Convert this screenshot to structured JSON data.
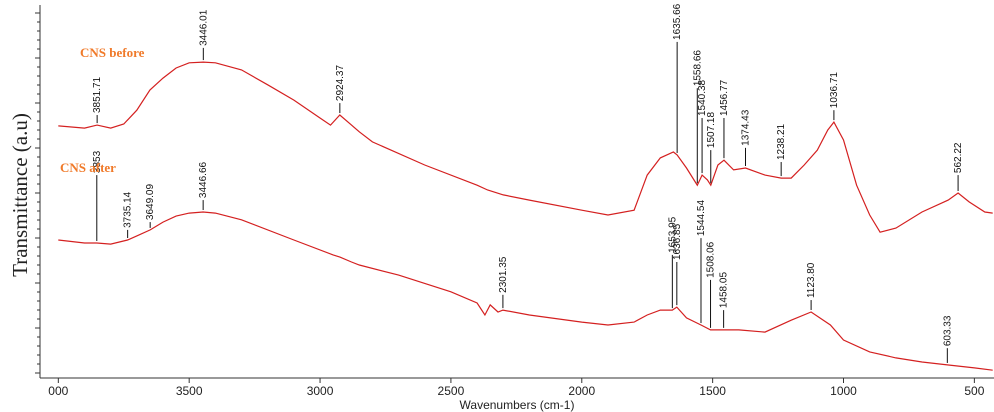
{
  "chart_data": {
    "type": "line",
    "y_label": "Transmittance (a.u)",
    "x_label": "Wavenumbers (cm-1)",
    "xlim": [
      4070,
      425
    ],
    "xticks": [
      {
        "value": 4000,
        "label": "000"
      },
      3500,
      3000,
      2500,
      2000,
      1500,
      1000,
      500
    ],
    "ylim": [
      0,
      100
    ],
    "legend_color": "#f07a2a",
    "series": [
      {
        "name": "CNS before",
        "color": "#d42020",
        "x": [
          4000,
          3900,
          3851.71,
          3800,
          3750,
          3700,
          3650,
          3600,
          3550,
          3500,
          3446.01,
          3400,
          3300,
          3200,
          3100,
          3000,
          2960,
          2924.37,
          2880,
          2850,
          2800,
          2600,
          2400,
          2360,
          2300,
          2200,
          2000,
          1900,
          1800,
          1750,
          1700,
          1650,
          1635.66,
          1600,
          1558.66,
          1540.38,
          1520,
          1507.18,
          1480,
          1456.77,
          1420,
          1374.43,
          1300,
          1238.21,
          1200,
          1150,
          1100,
          1060,
          1036.71,
          1000,
          950,
          900,
          860,
          800,
          700,
          600,
          562.22,
          520,
          460,
          430
        ],
        "values": [
          67.6,
          67.0,
          67.8,
          67.0,
          68.1,
          71.8,
          77.2,
          80.4,
          83.1,
          84.5,
          84.7,
          84.5,
          82.6,
          78.6,
          74.5,
          69.7,
          67.8,
          70.5,
          67.8,
          66.0,
          63.3,
          57.1,
          51.7,
          50.4,
          49.1,
          47.7,
          45.0,
          43.7,
          45.0,
          54.4,
          59.0,
          60.6,
          59.8,
          56.3,
          51.7,
          54.4,
          53.1,
          51.7,
          57.1,
          58.4,
          55.8,
          56.3,
          54.4,
          53.6,
          53.6,
          57.1,
          61.1,
          66.5,
          68.6,
          63.8,
          51.7,
          43.7,
          39.1,
          40.2,
          44.5,
          47.7,
          49.6,
          47.2,
          44.5,
          44.2
        ],
        "peaks": [
          {
            "label": "3851.71",
            "x": 3851.71,
            "y": 70.5
          },
          {
            "label": "3446.01",
            "x": 3446.01,
            "y": 88.5
          },
          {
            "label": "2924.37",
            "x": 2924.37,
            "y": 73.7
          },
          {
            "label": "1635.66",
            "x": 1635.66,
            "y": 90.1
          },
          {
            "label": "1558.66",
            "x": 1558.66,
            "y": 77.7
          },
          {
            "label": "1540.38",
            "x": 1540.38,
            "y": 69.7
          },
          {
            "label": "1507.18",
            "x": 1507.18,
            "y": 61.1
          },
          {
            "label": "1456.77",
            "x": 1456.77,
            "y": 69.7
          },
          {
            "label": "1374.43",
            "x": 1374.43,
            "y": 61.7
          },
          {
            "label": "1238.21",
            "x": 1238.21,
            "y": 57.9
          },
          {
            "label": "1036.71",
            "x": 1036.71,
            "y": 71.8
          },
          {
            "label": "562.22",
            "x": 562.22,
            "y": 54.4
          }
        ]
      },
      {
        "name": "CNS after",
        "color": "#d42020",
        "x": [
          4000,
          3900,
          3853,
          3800,
          3735.14,
          3700,
          3649.09,
          3600,
          3550,
          3500,
          3446.66,
          3400,
          3300,
          3100,
          2950,
          2924,
          2880,
          2850,
          2700,
          2500,
          2400,
          2370,
          2350,
          2320,
          2301.35,
          2200,
          2000,
          1900,
          1800,
          1750,
          1700,
          1653.95,
          1636.85,
          1600,
          1544.54,
          1508.06,
          1458.05,
          1400,
          1300,
          1200,
          1123.8,
          1050,
          1000,
          900,
          800,
          700,
          603.33,
          500,
          430
        ],
        "values": [
          37.0,
          36.2,
          36.2,
          35.9,
          37.0,
          38.1,
          39.7,
          41.8,
          43.4,
          44.2,
          44.5,
          44.2,
          42.4,
          37.0,
          33.0,
          32.4,
          31.1,
          30.3,
          27.6,
          23.1,
          20.1,
          16.9,
          19.6,
          17.7,
          18.2,
          16.9,
          15.0,
          14.2,
          15.0,
          16.9,
          18.2,
          18.2,
          19.0,
          16.1,
          14.2,
          12.9,
          12.9,
          12.9,
          12.3,
          15.5,
          17.7,
          14.2,
          10.2,
          7.0,
          5.4,
          4.3,
          3.5,
          2.7,
          2.1
        ],
        "peaks": [
          {
            "label": "3853",
            "x": 3853,
            "y": 54.4
          },
          {
            "label": "3735.14",
            "x": 3735.14,
            "y": 39.7
          },
          {
            "label": "3649.09",
            "x": 3649.09,
            "y": 41.8
          },
          {
            "label": "3446.66",
            "x": 3446.66,
            "y": 47.7
          },
          {
            "label": "2301.35",
            "x": 2301.35,
            "y": 22.3
          },
          {
            "label": "1653.95",
            "x": 1653.95,
            "y": 33.0
          },
          {
            "label": "1636.85",
            "x": 1636.85,
            "y": 31.1
          },
          {
            "label": "1544.54",
            "x": 1544.54,
            "y": 37.5
          },
          {
            "label": "1508.06",
            "x": 1508.06,
            "y": 26.3
          },
          {
            "label": "1458.05",
            "x": 1458.05,
            "y": 18.2
          },
          {
            "label": "1123.80",
            "x": 1123.8,
            "y": 20.9
          },
          {
            "label": "603.33",
            "x": 603.33,
            "y": 8.0
          }
        ]
      }
    ]
  }
}
